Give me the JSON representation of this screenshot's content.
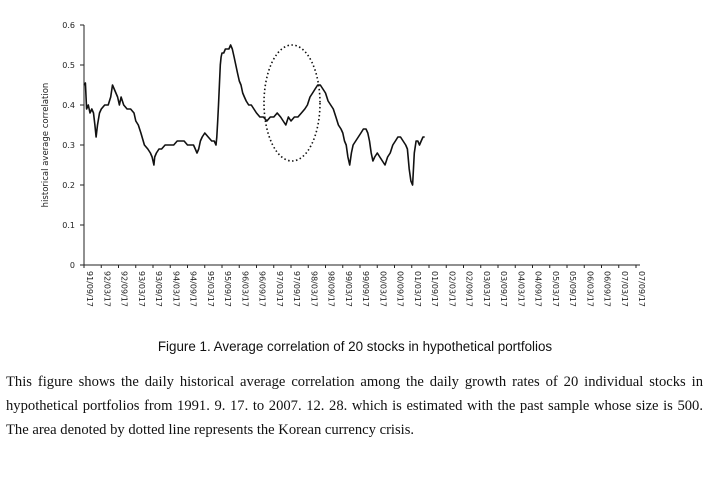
{
  "chart_data": {
    "type": "line",
    "ylabel": "historical average correlation",
    "yticks": [
      "0",
      "0.1",
      "0.2",
      "0.3",
      "0.4",
      "0.5",
      "0.6"
    ],
    "ylim": [
      0,
      0.6
    ],
    "xticks": [
      "91/09/17",
      "92/03/17",
      "92/09/17",
      "93/03/17",
      "93/09/17",
      "94/03/17",
      "94/09/17",
      "95/03/17",
      "95/09/17",
      "96/03/17",
      "96/09/17",
      "97/03/17",
      "97/09/17",
      "98/03/17",
      "98/09/17",
      "99/03/17",
      "99/09/17",
      "00/03/17",
      "00/09/17",
      "01/03/17",
      "01/09/17",
      "02/03/17",
      "02/09/17",
      "03/03/17",
      "03/09/17",
      "04/03/17",
      "04/09/17",
      "05/03/17",
      "05/09/17",
      "06/03/17",
      "06/09/17",
      "07/03/17",
      "07/09/17"
    ],
    "grid": false,
    "line_color": "#111111",
    "annotation": "dotted ellipse around the 1997-1998 Korean currency crisis rise",
    "series": [
      {
        "points": [
          [
            0.0,
            0.45
          ],
          [
            0.08,
            0.455
          ],
          [
            0.15,
            0.39
          ],
          [
            0.25,
            0.4
          ],
          [
            0.35,
            0.38
          ],
          [
            0.45,
            0.39
          ],
          [
            0.55,
            0.38
          ],
          [
            0.63,
            0.35
          ],
          [
            0.7,
            0.32
          ],
          [
            0.78,
            0.35
          ],
          [
            0.9,
            0.38
          ],
          [
            1.0,
            0.39
          ],
          [
            1.2,
            0.4
          ],
          [
            1.4,
            0.4
          ],
          [
            1.55,
            0.42
          ],
          [
            1.65,
            0.45
          ],
          [
            1.75,
            0.44
          ],
          [
            1.85,
            0.43
          ],
          [
            1.95,
            0.42
          ],
          [
            2.05,
            0.4
          ],
          [
            2.15,
            0.42
          ],
          [
            2.3,
            0.4
          ],
          [
            2.5,
            0.39
          ],
          [
            2.7,
            0.39
          ],
          [
            2.9,
            0.38
          ],
          [
            3.0,
            0.36
          ],
          [
            3.15,
            0.35
          ],
          [
            3.3,
            0.33
          ],
          [
            3.5,
            0.3
          ],
          [
            3.7,
            0.29
          ],
          [
            3.85,
            0.28
          ],
          [
            3.95,
            0.27
          ],
          [
            4.0,
            0.26
          ],
          [
            4.05,
            0.25
          ],
          [
            4.1,
            0.27
          ],
          [
            4.2,
            0.28
          ],
          [
            4.35,
            0.29
          ],
          [
            4.5,
            0.29
          ],
          [
            4.7,
            0.3
          ],
          [
            4.85,
            0.3
          ],
          [
            5.0,
            0.3
          ],
          [
            5.2,
            0.3
          ],
          [
            5.4,
            0.31
          ],
          [
            5.6,
            0.31
          ],
          [
            5.8,
            0.31
          ],
          [
            6.0,
            0.3
          ],
          [
            6.2,
            0.3
          ],
          [
            6.35,
            0.3
          ],
          [
            6.45,
            0.29
          ],
          [
            6.55,
            0.28
          ],
          [
            6.65,
            0.29
          ],
          [
            6.75,
            0.31
          ],
          [
            6.85,
            0.32
          ],
          [
            7.0,
            0.33
          ],
          [
            7.2,
            0.32
          ],
          [
            7.4,
            0.31
          ],
          [
            7.55,
            0.31
          ],
          [
            7.65,
            0.3
          ],
          [
            7.7,
            0.32
          ],
          [
            7.75,
            0.36
          ],
          [
            7.8,
            0.4
          ],
          [
            7.85,
            0.45
          ],
          [
            7.9,
            0.5
          ],
          [
            7.95,
            0.52
          ],
          [
            8.0,
            0.53
          ],
          [
            8.1,
            0.53
          ],
          [
            8.2,
            0.54
          ],
          [
            8.3,
            0.54
          ],
          [
            8.4,
            0.54
          ],
          [
            8.5,
            0.55
          ],
          [
            8.6,
            0.54
          ],
          [
            8.7,
            0.52
          ],
          [
            8.8,
            0.5
          ],
          [
            8.9,
            0.48
          ],
          [
            9.0,
            0.46
          ],
          [
            9.1,
            0.45
          ],
          [
            9.2,
            0.43
          ],
          [
            9.3,
            0.42
          ],
          [
            9.4,
            0.41
          ],
          [
            9.55,
            0.4
          ],
          [
            9.7,
            0.4
          ],
          [
            9.85,
            0.39
          ],
          [
            10.0,
            0.38
          ],
          [
            10.2,
            0.37
          ],
          [
            10.4,
            0.37
          ],
          [
            10.6,
            0.36
          ],
          [
            10.8,
            0.37
          ],
          [
            11.0,
            0.37
          ],
          [
            11.2,
            0.38
          ],
          [
            11.4,
            0.37
          ],
          [
            11.55,
            0.36
          ],
          [
            11.7,
            0.35
          ],
          [
            11.85,
            0.37
          ],
          [
            12.0,
            0.36
          ],
          [
            12.2,
            0.37
          ],
          [
            12.4,
            0.37
          ],
          [
            12.6,
            0.38
          ],
          [
            12.8,
            0.39
          ],
          [
            12.95,
            0.4
          ],
          [
            13.1,
            0.42
          ],
          [
            13.25,
            0.43
          ],
          [
            13.4,
            0.44
          ],
          [
            13.55,
            0.45
          ],
          [
            13.7,
            0.45
          ],
          [
            13.85,
            0.44
          ],
          [
            14.0,
            0.43
          ],
          [
            14.15,
            0.41
          ],
          [
            14.3,
            0.4
          ],
          [
            14.45,
            0.39
          ],
          [
            14.6,
            0.37
          ],
          [
            14.75,
            0.35
          ],
          [
            14.9,
            0.34
          ],
          [
            15.0,
            0.33
          ],
          [
            15.1,
            0.31
          ],
          [
            15.2,
            0.3
          ],
          [
            15.3,
            0.27
          ],
          [
            15.4,
            0.25
          ],
          [
            15.5,
            0.28
          ],
          [
            15.6,
            0.3
          ],
          [
            15.75,
            0.31
          ],
          [
            15.9,
            0.32
          ],
          [
            16.05,
            0.33
          ],
          [
            16.2,
            0.34
          ],
          [
            16.35,
            0.34
          ],
          [
            16.45,
            0.33
          ],
          [
            16.55,
            0.31
          ],
          [
            16.65,
            0.28
          ],
          [
            16.75,
            0.26
          ],
          [
            16.85,
            0.27
          ],
          [
            17.0,
            0.28
          ],
          [
            17.15,
            0.27
          ],
          [
            17.3,
            0.26
          ],
          [
            17.45,
            0.25
          ],
          [
            17.6,
            0.27
          ],
          [
            17.75,
            0.28
          ],
          [
            17.9,
            0.3
          ],
          [
            18.05,
            0.31
          ],
          [
            18.2,
            0.32
          ],
          [
            18.35,
            0.32
          ],
          [
            18.5,
            0.31
          ],
          [
            18.65,
            0.3
          ],
          [
            18.75,
            0.29
          ],
          [
            18.85,
            0.24
          ],
          [
            18.95,
            0.21
          ],
          [
            19.05,
            0.2
          ],
          [
            19.15,
            0.28
          ],
          [
            19.25,
            0.31
          ],
          [
            19.35,
            0.31
          ],
          [
            19.45,
            0.3
          ],
          [
            19.55,
            0.31
          ],
          [
            19.65,
            0.32
          ],
          [
            19.75,
            0.32
          ]
        ]
      }
    ]
  },
  "caption": "Figure 1. Average  correlation of 20 stocks in hypothetical portfolios",
  "description": "This figure shows the daily historical average correlation among the daily growth rates of 20 individual stocks in hypothetical portfolios from 1991. 9. 17. to 2007. 12. 28. which is estimated with the past sample whose size is 500. The area denoted by dotted line represents the Korean currency crisis."
}
